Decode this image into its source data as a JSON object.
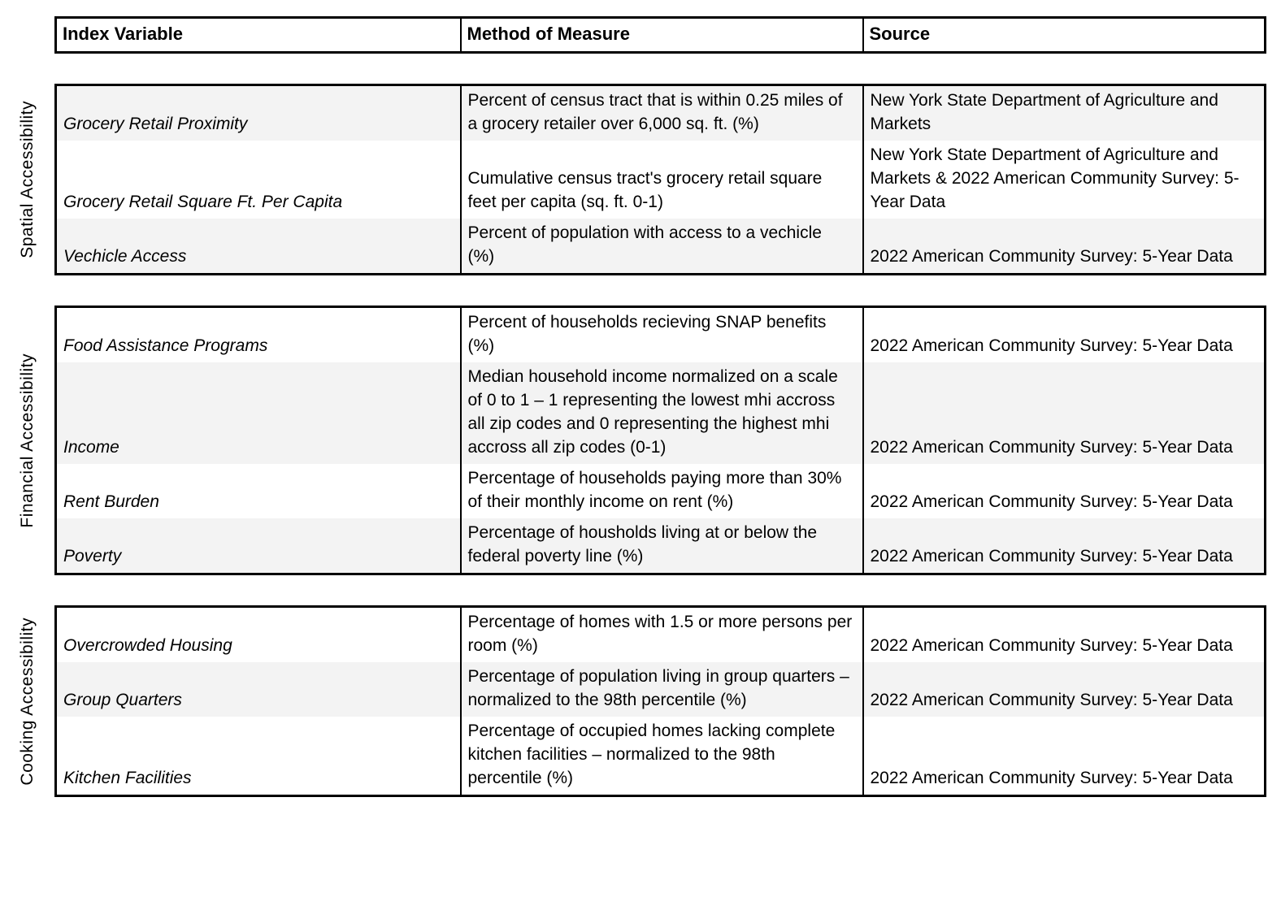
{
  "colors": {
    "background": "#ffffff",
    "stripe": "#f3f3f3",
    "border": "#000000",
    "text": "#000000"
  },
  "header": {
    "columns": [
      "Index Variable",
      "Method of Measure",
      "Source"
    ]
  },
  "sections": [
    {
      "label": "Spatial Accessibility",
      "rows": [
        {
          "variable": "Grocery Retail Proximity",
          "method": "Percent of census tract that is within 0.25 miles of a grocery retailer over 6,000 sq. ft. (%)",
          "source": "New York State Department of Agriculture and Markets"
        },
        {
          "variable": "Grocery Retail Square Ft. Per Capita",
          "method": "Cumulative census tract's grocery retail square feet per capita (sq. ft. 0-1)",
          "source": "New York State Department of Agriculture and Markets & 2022 American Community Survey: 5-Year Data"
        },
        {
          "variable": "Vechicle Access",
          "method": "Percent of population with access to a vechicle (%)",
          "source": "2022 American Community Survey: 5-Year Data"
        }
      ]
    },
    {
      "label": "Financial Accessibility",
      "rows": [
        {
          "variable": "Food Assistance Programs",
          "method": "Percent of households recieving SNAP benefits (%)",
          "source": "2022 American Community Survey: 5-Year Data"
        },
        {
          "variable": "Income",
          "method": "Median household income normalized on a scale of 0 to 1 – 1 representing the lowest mhi accross all zip codes and 0 representing the highest mhi accross all zip codes (0-1)",
          "source": "2022 American Community Survey: 5-Year Data"
        },
        {
          "variable": "Rent Burden",
          "method": "Percentage of households paying more than 30% of their monthly income on rent (%)",
          "source": "2022 American Community Survey: 5-Year Data"
        },
        {
          "variable": "Poverty",
          "method": "Percentage of housholds living at or below the federal poverty line (%)",
          "source": "2022 American Community Survey: 5-Year Data"
        }
      ]
    },
    {
      "label": "Cooking Accessibility",
      "rows": [
        {
          "variable": "Overcrowded Housing",
          "method": "Percentage of homes with 1.5  or more persons per room (%)",
          "source": "2022 American Community Survey: 5-Year Data"
        },
        {
          "variable": "Group Quarters",
          "method": "Percentage of population living in group quarters – normalized to the 98th percentile (%)",
          "source": "2022 American Community Survey: 5-Year Data"
        },
        {
          "variable": "Kitchen Facilities",
          "method": "Percentage of occupied homes lacking complete kitchen facilities – normalized to the 98th percentile (%)",
          "source": "2022 American Community Survey: 5-Year Data"
        }
      ]
    }
  ]
}
